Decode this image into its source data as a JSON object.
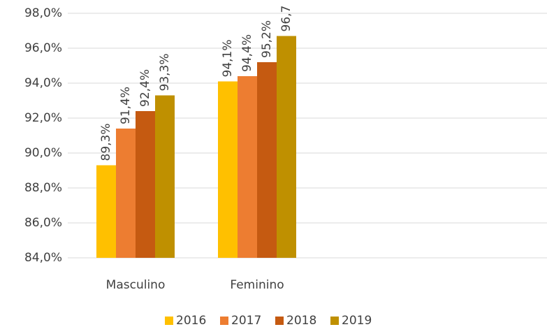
{
  "chart_data": {
    "type": "bar",
    "categories": [
      "Masculino",
      "Feminino"
    ],
    "series": [
      {
        "name": "2016",
        "color": "#FFC000",
        "values": [
          89.3,
          94.1
        ],
        "value_labels": [
          "89,3%",
          "94,1%"
        ]
      },
      {
        "name": "2017",
        "color": "#ED7D31",
        "values": [
          91.4,
          94.4
        ],
        "value_labels": [
          "91,4%",
          "94,4%"
        ]
      },
      {
        "name": "2018",
        "color": "#C55A11",
        "values": [
          92.4,
          95.2
        ],
        "value_labels": [
          "92,4%",
          "95,2%"
        ]
      },
      {
        "name": "2019",
        "color": "#BF9000",
        "values": [
          93.3,
          96.7
        ],
        "value_labels": [
          "93,3%",
          "96,7"
        ]
      }
    ],
    "ylim": [
      84,
      98
    ],
    "yticks": [
      {
        "value": 84,
        "label": "84,0%"
      },
      {
        "value": 86,
        "label": "86,0%"
      },
      {
        "value": 88,
        "label": "88,0%"
      },
      {
        "value": 90,
        "label": "90,0%"
      },
      {
        "value": 92,
        "label": "92,0%"
      },
      {
        "value": 94,
        "label": "94,0%"
      },
      {
        "value": 96,
        "label": "96,0%"
      },
      {
        "value": 98,
        "label": "98,0%"
      }
    ],
    "grid": true,
    "legend": "bottom"
  }
}
